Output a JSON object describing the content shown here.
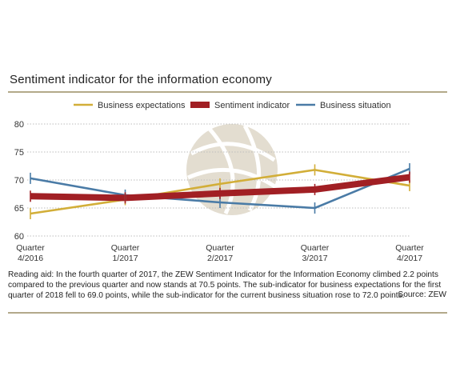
{
  "chart_data": {
    "type": "line",
    "title": "Sentiment indicator for the information economy",
    "categories": [
      "Quarter\n4/2016",
      "Quarter\n1/2017",
      "Quarter\n2/2017",
      "Quarter\n3/2017",
      "Quarter\n4/2017"
    ],
    "ylim": [
      60,
      80
    ],
    "yticks": [
      60,
      65,
      70,
      75,
      80
    ],
    "grid": true,
    "legend_position": "top",
    "series": [
      {
        "name": "Business expectations",
        "color": "#d2ae38",
        "values": [
          64.0,
          66.5,
          69.3,
          71.8,
          69.0
        ]
      },
      {
        "name": "Sentiment indicator",
        "color": "#a11f24",
        "values": [
          67.1,
          66.8,
          67.6,
          68.3,
          70.5
        ]
      },
      {
        "name": "Business situation",
        "color": "#4a7ba6",
        "values": [
          70.3,
          67.3,
          66.0,
          65.0,
          72.0
        ]
      }
    ]
  },
  "reading_aid": "Reading aid: In the fourth quarter of 2017, the ZEW Sentiment Indicator for the Information Economy climbed 2.2 points compared to the previous quarter and now stands at 70.5 points. The sub-indicator for business expectations for the first quarter of 2018 fell to 69.0 points, while the sub-indicator for the current business situation rose to 72.0 points.",
  "source": "Source: ZEW",
  "colors": {
    "rule": "#b3a98a",
    "grid": "#bdbdbd",
    "watermark": "#e3ddd0"
  },
  "watermark_icon": "globe-icon"
}
